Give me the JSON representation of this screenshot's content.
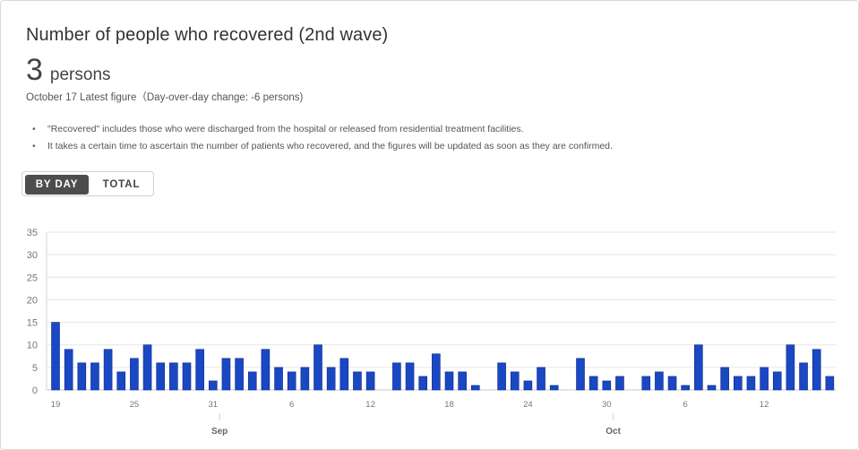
{
  "card": {
    "title": "Number of people who recovered (2nd wave)",
    "value": "3",
    "unit": "persons",
    "date_note": "October 17 Latest figure（Day-over-day change: -6 persons)"
  },
  "notes": [
    "\"Recovered\" includes those who were discharged from the hospital or released from residential treatment facilities.",
    "It takes a certain time to ascertain the number of patients who recovered, and the figures will be updated as soon as they are confirmed."
  ],
  "toggle": {
    "by_day": "BY DAY",
    "total": "TOTAL",
    "selected": "BY DAY"
  },
  "colors": {
    "bar": "#1a48c2",
    "bar_border": "#0a2a8a"
  },
  "chart_data": {
    "type": "bar",
    "ylim": [
      0,
      35
    ],
    "yticks": [
      0,
      5,
      10,
      15,
      20,
      25,
      30,
      35
    ],
    "grid": true,
    "x": [
      "Aug 19",
      "Aug 20",
      "Aug 21",
      "Aug 22",
      "Aug 23",
      "Aug 24",
      "Aug 25",
      "Aug 26",
      "Aug 27",
      "Aug 28",
      "Aug 29",
      "Aug 30",
      "Aug 31",
      "Sep 1",
      "Sep 2",
      "Sep 3",
      "Sep 4",
      "Sep 5",
      "Sep 6",
      "Sep 7",
      "Sep 8",
      "Sep 9",
      "Sep 10",
      "Sep 11",
      "Sep 12",
      "Sep 13",
      "Sep 14",
      "Sep 15",
      "Sep 16",
      "Sep 17",
      "Sep 18",
      "Sep 19",
      "Sep 20",
      "Sep 21",
      "Sep 22",
      "Sep 23",
      "Sep 24",
      "Sep 25",
      "Sep 26",
      "Sep 27",
      "Sep 28",
      "Sep 29",
      "Sep 30",
      "Oct 1",
      "Oct 2",
      "Oct 3",
      "Oct 4",
      "Oct 5",
      "Oct 6",
      "Oct 7",
      "Oct 8",
      "Oct 9",
      "Oct 10",
      "Oct 11",
      "Oct 12",
      "Oct 13",
      "Oct 14",
      "Oct 15",
      "Oct 16",
      "Oct 17"
    ],
    "values": [
      15,
      9,
      6,
      6,
      9,
      4,
      7,
      10,
      6,
      6,
      6,
      9,
      2,
      7,
      7,
      4,
      9,
      5,
      4,
      5,
      10,
      5,
      7,
      4,
      4,
      0,
      6,
      6,
      3,
      8,
      4,
      4,
      1,
      0,
      6,
      4,
      2,
      5,
      1,
      0,
      7,
      3,
      2,
      3,
      0,
      3,
      4,
      3,
      1,
      10,
      1,
      5,
      3,
      3,
      5,
      4,
      10,
      6,
      9,
      3
    ],
    "tick_labels": [
      {
        "label": "19",
        "index": 0
      },
      {
        "label": "25",
        "index": 6
      },
      {
        "label": "31",
        "index": 12
      },
      {
        "label": "6",
        "index": 18
      },
      {
        "label": "12",
        "index": 24
      },
      {
        "label": "18",
        "index": 30
      },
      {
        "label": "24",
        "index": 36
      },
      {
        "label": "30",
        "index": 42
      },
      {
        "label": "6",
        "index": 48
      },
      {
        "label": "12",
        "index": 54
      }
    ],
    "month_labels": [
      {
        "label": "Sep",
        "index": 13
      },
      {
        "label": "Oct",
        "index": 43
      }
    ]
  }
}
